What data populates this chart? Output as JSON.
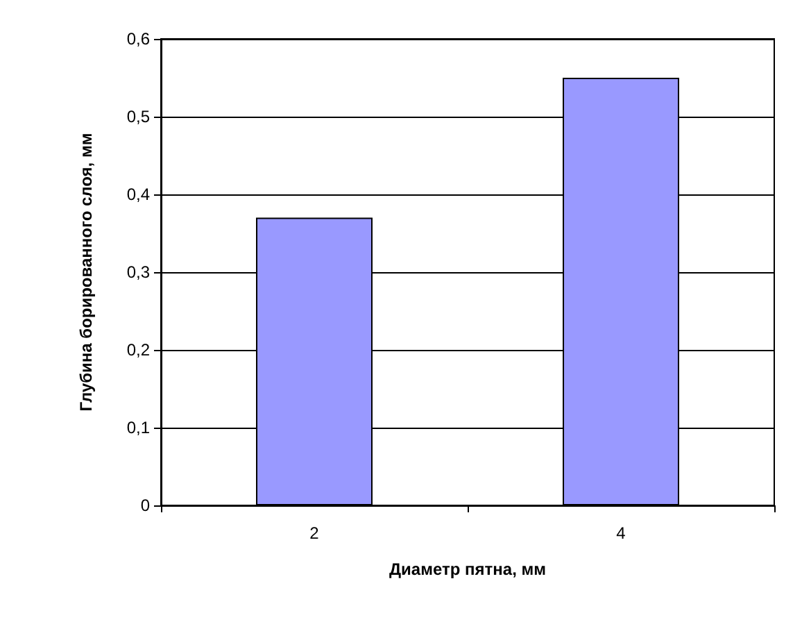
{
  "chart_data": {
    "type": "bar",
    "xlabel": "Диаметр пятна, мм",
    "ylabel": "Глубина борированного слоя, мм",
    "categories": [
      "2",
      "4"
    ],
    "values": [
      0.37,
      0.55
    ],
    "color": "#9999ff",
    "ylim": [
      0,
      0.6
    ],
    "yticks": [
      0,
      {
        "value": 0.1,
        "label": "0,1"
      },
      {
        "value": 0.2,
        "label": "0,2"
      },
      {
        "value": 0.3,
        "label": "0,3"
      },
      {
        "value": 0.4,
        "label": "0,4"
      },
      {
        "value": 0.5,
        "label": "0,5"
      },
      {
        "value": 0.6,
        "label": "0,6"
      }
    ],
    "grid": "y"
  }
}
